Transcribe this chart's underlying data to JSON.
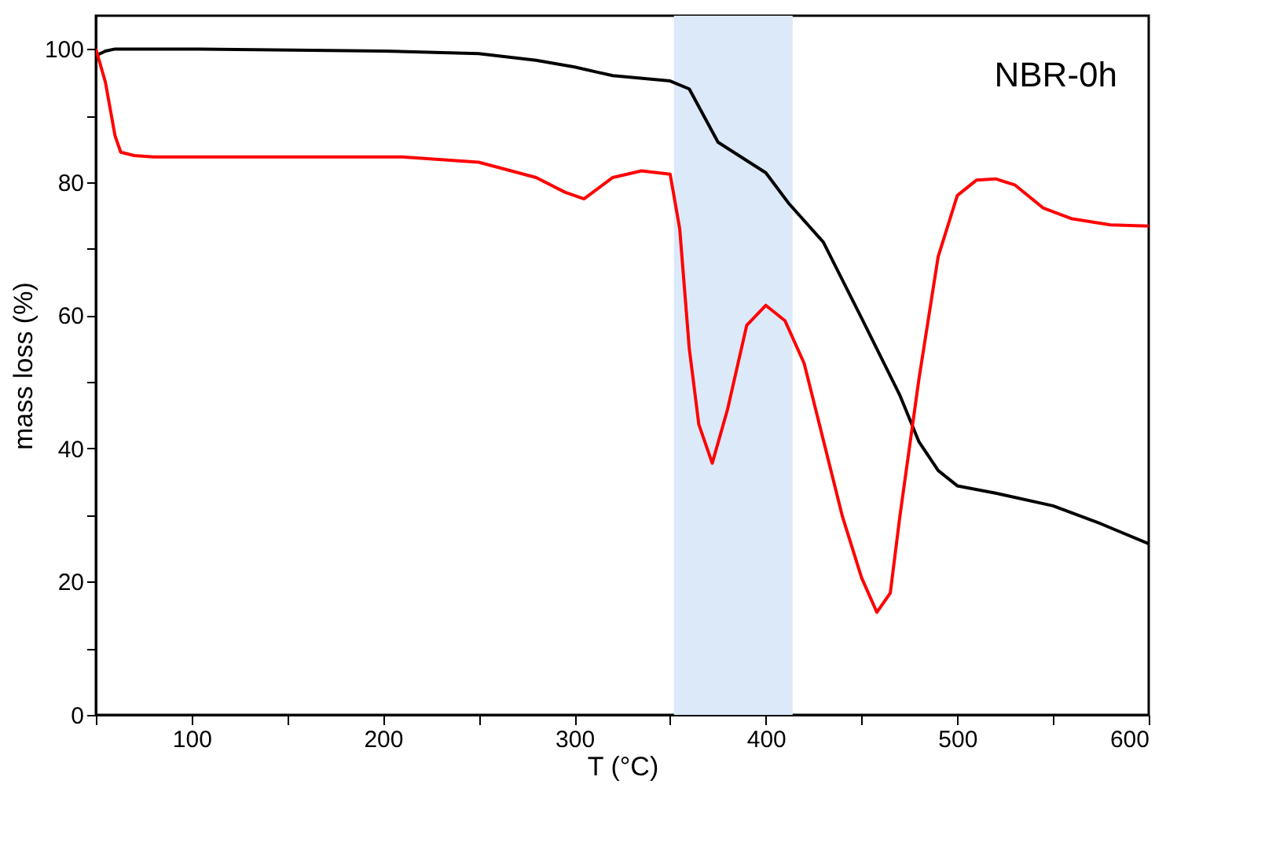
{
  "chart_data": {
    "type": "line",
    "xlabel": "T (°C)",
    "ylabel": "mass loss (%)",
    "annotations": [
      "NBR-0h"
    ],
    "xlim": [
      50,
      600
    ],
    "ylim": [
      0,
      105
    ],
    "xticks": [
      {
        "value": 50,
        "label": null
      },
      100,
      {
        "value": 150,
        "label": null
      },
      200,
      {
        "value": 250,
        "label": null
      },
      300,
      {
        "value": 350,
        "label": null
      },
      400,
      {
        "value": 450,
        "label": null
      },
      500,
      {
        "value": 550,
        "label": null
      },
      600
    ],
    "yticks": [
      0,
      {
        "value": 10,
        "label": null
      },
      20,
      {
        "value": 30,
        "label": null
      },
      40,
      {
        "value": 50,
        "label": null
      },
      60,
      {
        "value": 70,
        "label": null
      },
      80,
      {
        "value": 90,
        "label": null
      },
      100
    ],
    "bands": [
      {
        "axis": "x",
        "from": 352,
        "to": 414,
        "color": "#dbe9f9"
      }
    ],
    "grid": false,
    "line_style": "solid",
    "marker": "none",
    "series": [
      {
        "color": "#000000",
        "x": [
          50,
          55,
          60,
          100,
          200,
          250,
          280,
          300,
          320,
          350,
          360,
          375,
          400,
          412,
          430,
          450,
          470,
          480,
          490,
          500,
          520,
          550,
          575,
          600
        ],
        "values": [
          99,
          99.7,
          100,
          100,
          99.7,
          99.3,
          98.3,
          97.3,
          96,
          95.2,
          94,
          86,
          81.4,
          76.8,
          71,
          59.6,
          48,
          41,
          36.7,
          34.4,
          33.3,
          31.4,
          28.7,
          25.7
        ]
      },
      {
        "color": "#ff0000",
        "x": [
          50,
          55,
          60,
          63,
          70,
          80,
          210,
          250,
          280,
          295,
          305,
          320,
          335,
          350,
          355,
          360,
          365,
          372,
          380,
          390,
          400,
          410,
          420,
          430,
          440,
          450,
          458,
          465,
          470,
          480,
          490,
          500,
          510,
          520,
          530,
          545,
          560,
          580,
          600
        ],
        "values": [
          100,
          95,
          87,
          84.5,
          84,
          83.8,
          83.8,
          83,
          80.7,
          78.5,
          77.5,
          80.7,
          81.7,
          81.2,
          73,
          55,
          43.6,
          37.8,
          45.9,
          58.5,
          61.5,
          59.2,
          52.8,
          41.3,
          29.8,
          20.6,
          15.4,
          18.3,
          29.8,
          50.5,
          68.8,
          78,
          80.3,
          80.5,
          79.6,
          76.1,
          74.5,
          73.6,
          73.4
        ]
      }
    ]
  }
}
